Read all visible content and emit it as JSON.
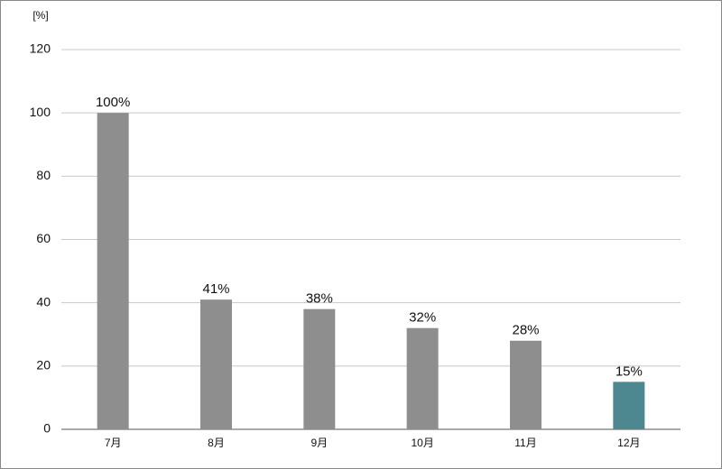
{
  "chart_data": {
    "type": "bar",
    "ylabel": "[%]",
    "categories": [
      "7月",
      "8月",
      "9月",
      "10月",
      "11月",
      "12月"
    ],
    "values": [
      100,
      41,
      38,
      32,
      28,
      15
    ],
    "value_labels": [
      "100%",
      "41%",
      "38%",
      "32%",
      "28%",
      "15%"
    ],
    "colors": [
      "#8e8e8e",
      "#8e8e8e",
      "#8e8e8e",
      "#8e8e8e",
      "#8e8e8e",
      "#4d8891"
    ],
    "ylim": [
      0,
      120
    ],
    "yticks": [
      0,
      20,
      40,
      60,
      80,
      100,
      120
    ],
    "grid": true
  }
}
